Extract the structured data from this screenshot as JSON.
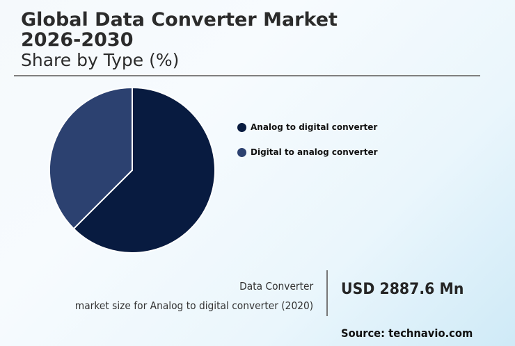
{
  "header": {
    "title_line1": "Global Data Converter Market",
    "title_line2": "2026-2030",
    "subtitle": "Share by Type (%)"
  },
  "legend": {
    "items": [
      {
        "label": "Analog to digital converter",
        "color": "#081b40"
      },
      {
        "label": "Digital to analog converter",
        "color": "#2c4170"
      }
    ]
  },
  "stat": {
    "line1": "Data Converter",
    "line2": "market size for Analog to digital converter (2020)",
    "value": "USD 2887.6 Mn"
  },
  "footer": {
    "source": "Source: technavio.com"
  },
  "chart_data": {
    "type": "pie",
    "title": "Global Data Converter Market 2026-2030",
    "subtitle": "Share by Type (%)",
    "categories": [
      "Analog to digital converter",
      "Digital to analog converter"
    ],
    "values": [
      62.5,
      37.5
    ],
    "colors": [
      "#081b40",
      "#2c4170"
    ],
    "start_angle": "12 o'clock, clockwise",
    "legend_position": "right",
    "annotation": "Data Converter market size for Analog to digital converter (2020): USD 2887.6 Mn"
  }
}
